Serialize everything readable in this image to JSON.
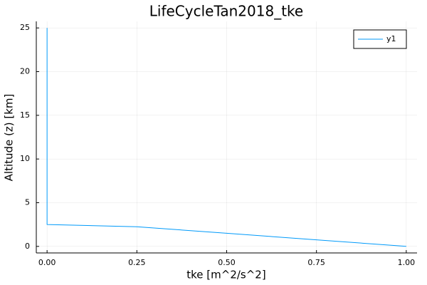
{
  "chart_data": {
    "type": "line",
    "title": "LifeCycleTan2018_tke",
    "xlabel": "tke [m^2/s^2]",
    "ylabel": "Altitude (z) [km]",
    "xlim": [
      -0.03,
      1.03
    ],
    "ylim": [
      -0.75,
      25.75
    ],
    "xticks": [
      0.0,
      0.25,
      0.5,
      0.75,
      1.0
    ],
    "xtick_labels": [
      "0.00",
      "0.25",
      "0.50",
      "0.75",
      "1.00"
    ],
    "yticks": [
      0,
      5,
      10,
      15,
      20,
      25
    ],
    "ytick_labels": [
      "0",
      "5",
      "10",
      "15",
      "20",
      "25"
    ],
    "grid": true,
    "legend_position": "top-right",
    "series": [
      {
        "name": "y1",
        "color": "#009AFA",
        "x": [
          1.0,
          0.75,
          0.5,
          0.25,
          0.0,
          0.0
        ],
        "y": [
          0.0,
          0.75,
          1.5,
          2.25,
          2.5,
          25.0
        ]
      }
    ]
  }
}
